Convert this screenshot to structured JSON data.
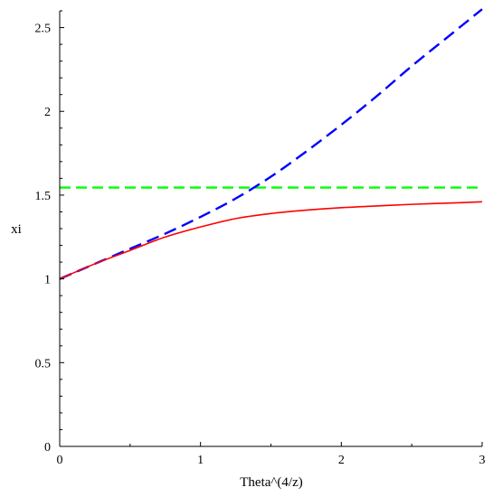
{
  "chart_data": {
    "type": "line",
    "xlabel": "Theta^(4/z)",
    "ylabel": "xi",
    "xlim": [
      0,
      3
    ],
    "ylim": [
      0,
      2.6
    ],
    "grid": false,
    "x_ticks": [
      0,
      1,
      2,
      3
    ],
    "x_tick_labels": [
      "0",
      "1",
      "2",
      "3"
    ],
    "y_ticks": [
      0,
      0.5,
      1,
      1.5,
      2,
      2.5
    ],
    "y_tick_labels": [
      "0",
      "0.5",
      "1",
      "1.5",
      "2",
      "2.5"
    ],
    "series": [
      {
        "color": "#ff0000",
        "style": "solid",
        "x": [
          0,
          0.25,
          0.5,
          0.75,
          1,
          1.25,
          1.5,
          1.75,
          2,
          2.25,
          2.5,
          2.75,
          3
        ],
        "y": [
          1.0,
          1.09,
          1.17,
          1.25,
          1.31,
          1.36,
          1.39,
          1.41,
          1.425,
          1.435,
          1.445,
          1.452,
          1.46
        ]
      },
      {
        "color": "#0000ff",
        "style": "dashed",
        "x": [
          0,
          0.25,
          0.5,
          0.75,
          1,
          1.25,
          1.5,
          1.75,
          2,
          2.25,
          2.5,
          2.75,
          3
        ],
        "y": [
          1.0,
          1.09,
          1.18,
          1.27,
          1.37,
          1.48,
          1.61,
          1.76,
          1.92,
          2.09,
          2.27,
          2.44,
          2.61
        ]
      },
      {
        "color": "#00ff00",
        "style": "dashed",
        "x": [
          0,
          3
        ],
        "y": [
          1.545,
          1.545
        ]
      }
    ]
  }
}
